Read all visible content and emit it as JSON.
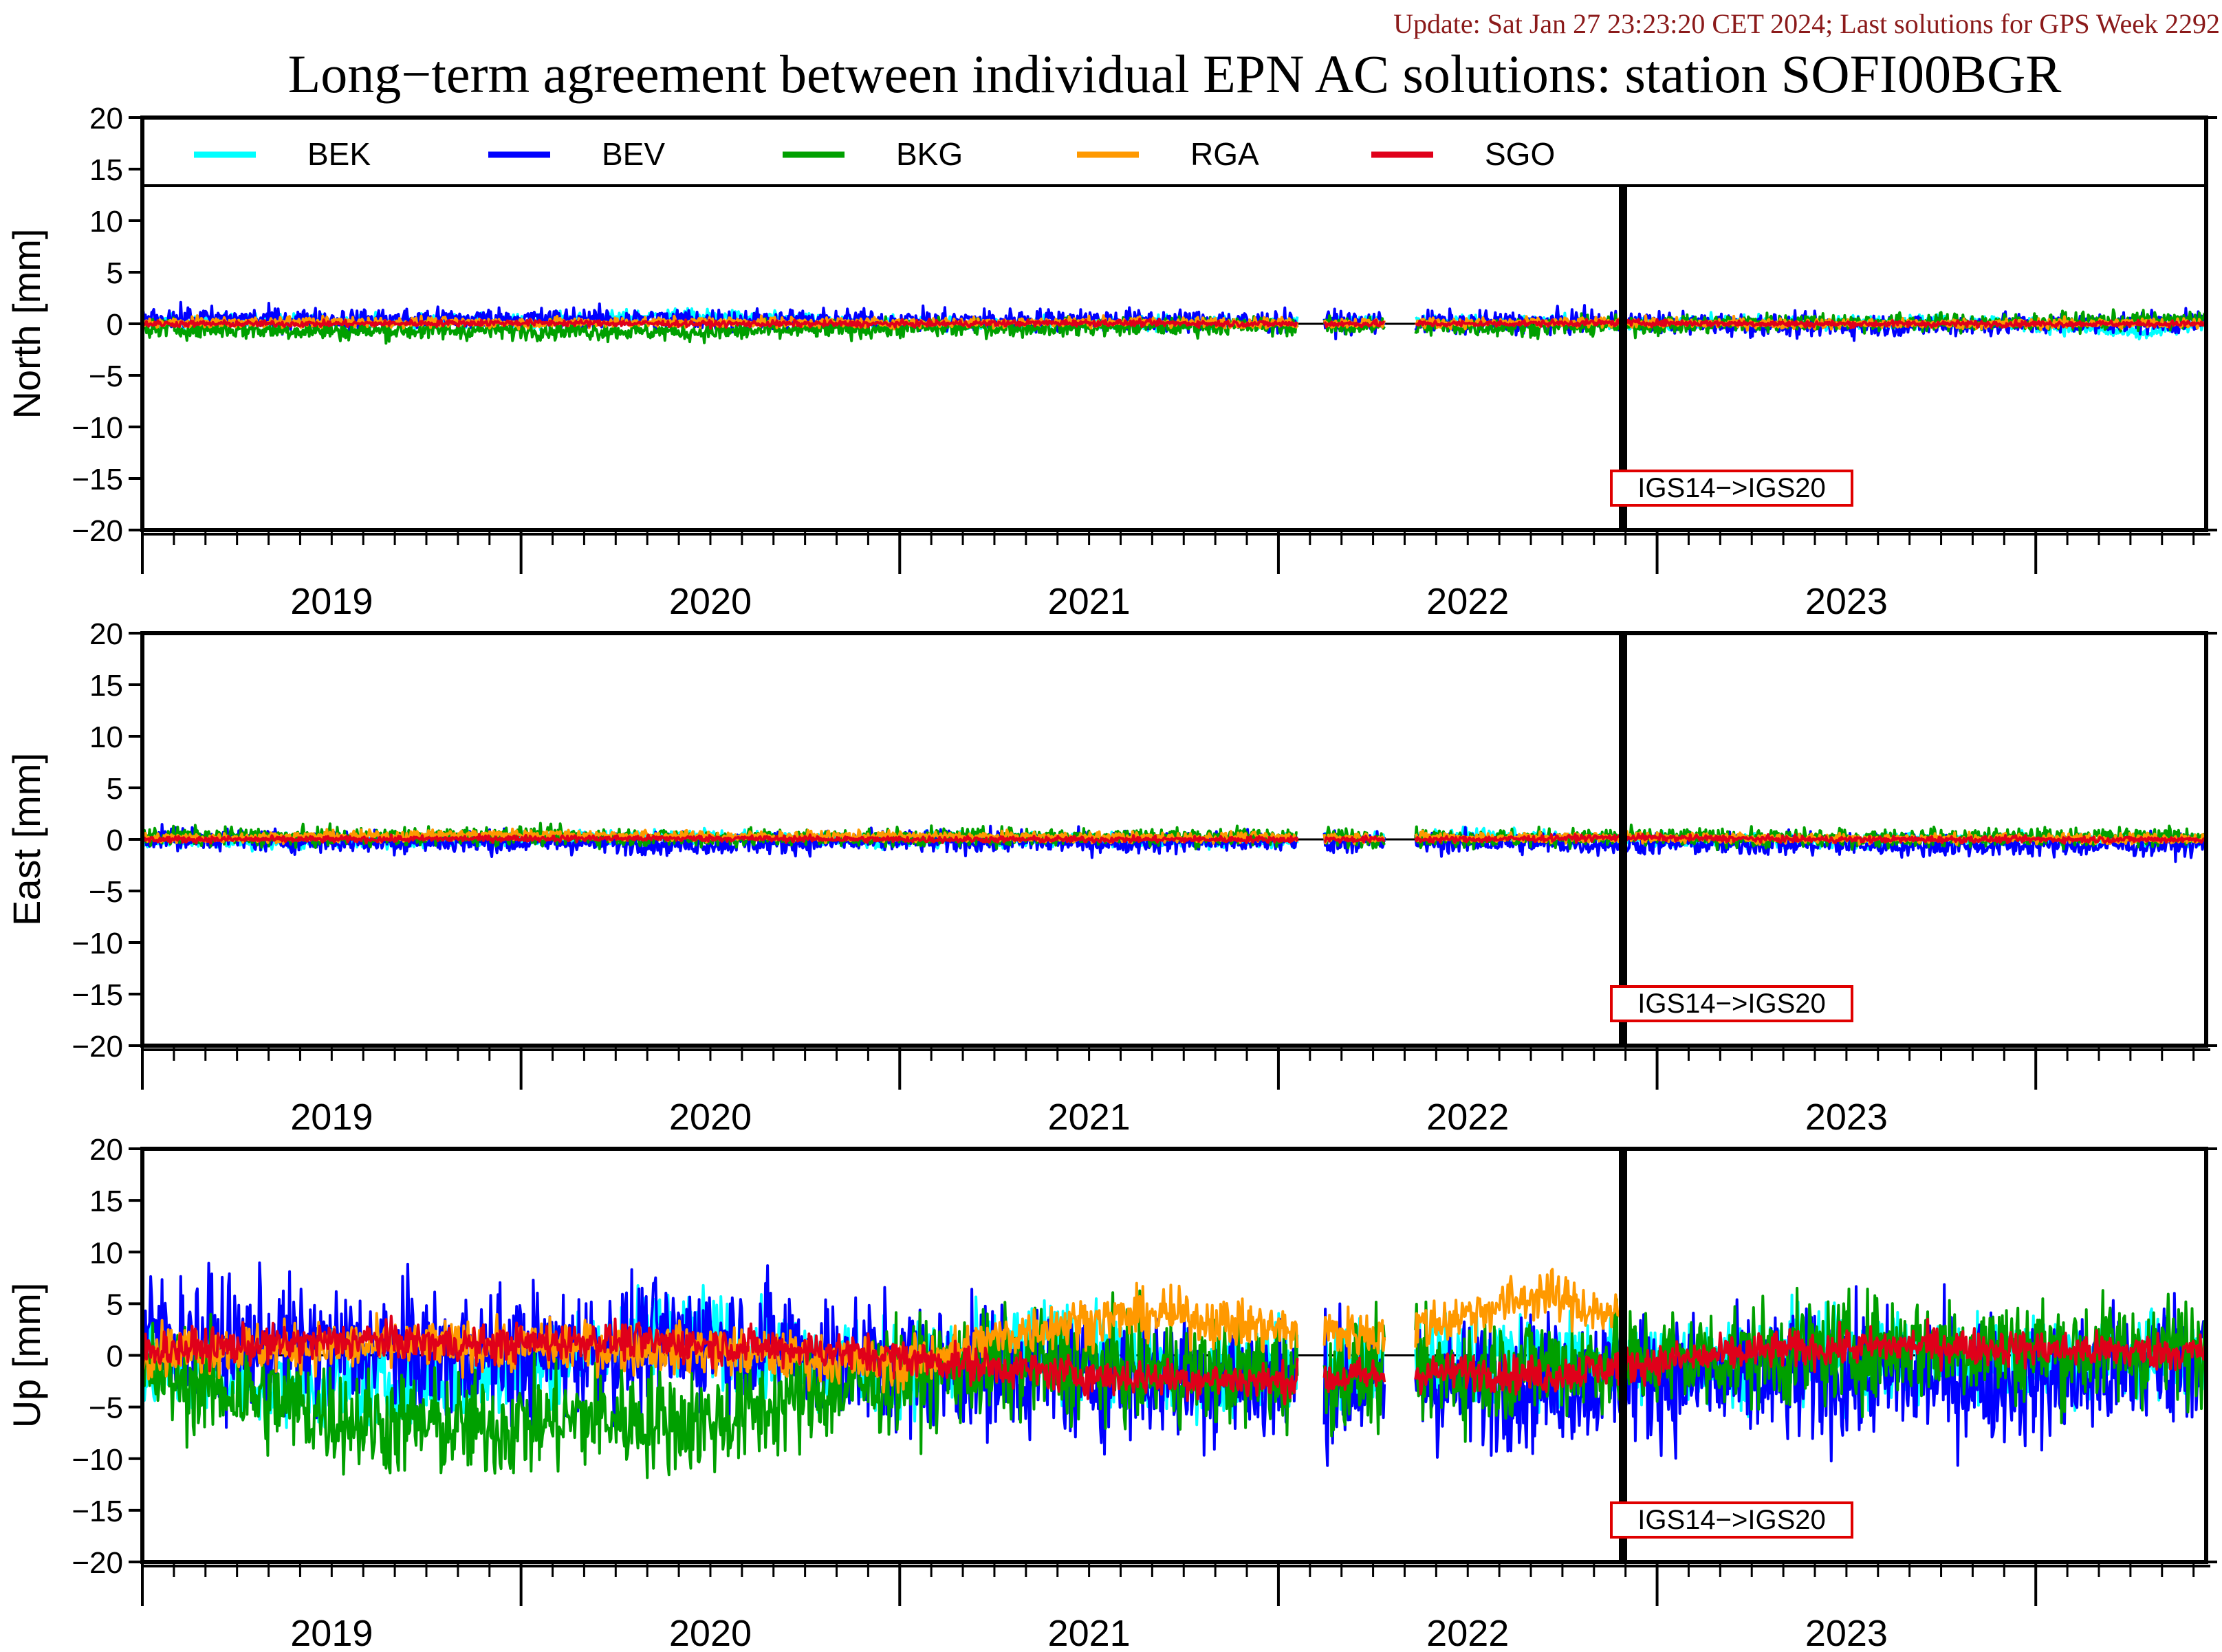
{
  "header": {
    "update_text": "Update: Sat Jan 27 23:23:20 CET 2024; Last solutions for GPS Week 2292",
    "title": "Long−term agreement between individual EPN AC solutions: station SOFI00BGR"
  },
  "colors": {
    "update_text": "#8b1a1a",
    "BEK": "#00ffff",
    "BEV": "#0000ff",
    "BKG": "#00a000",
    "RGA": "#ff9900",
    "SGO": "#e0001a",
    "annotation_border": "#e00000"
  },
  "chart_data": {
    "type": "line",
    "x_unit": "decimal year",
    "xlim": [
      2018.5,
      2023.95
    ],
    "year_labels": [
      "2019",
      "2020",
      "2021",
      "2022",
      "2023"
    ],
    "reference_frame_change": {
      "x": 2022.41,
      "label": "IGS14−>IGS20"
    },
    "legend": {
      "placement": "top",
      "entries": [
        "BEK",
        "BEV",
        "BKG",
        "RGA",
        "SGO"
      ]
    },
    "panels": [
      {
        "name": "north",
        "ylabel": "North [mm]",
        "ylim": [
          -20,
          20
        ],
        "yticks": [
          "20",
          "15",
          "10",
          "5",
          "0",
          "−5",
          "−10",
          "−15",
          "−20"
        ],
        "has_legend": true,
        "series": [
          {
            "name": "BEK",
            "x": [
              2018.5,
              2019.0,
              2019.5,
              2019.9,
              2020.5,
              2021.0,
              2021.5,
              2022.0,
              2022.41,
              2022.9,
              2023.4,
              2023.78,
              2023.95
            ],
            "y": [
              0.2,
              0.3,
              0.2,
              0.8,
              0.0,
              0.1,
              0.2,
              0.2,
              0.1,
              0.1,
              0.2,
              -1.0,
              0.1
            ]
          },
          {
            "name": "BEV",
            "x": [
              2018.5,
              2019.0,
              2019.5,
              2020.0,
              2020.5,
              2021.0,
              2021.5,
              2022.0,
              2022.41,
              2022.9,
              2023.4,
              2023.8,
              2023.95
            ],
            "y": [
              0.6,
              0.4,
              0.5,
              0.4,
              0.3,
              0.4,
              0.2,
              0.1,
              0.2,
              -0.2,
              -0.1,
              0.1,
              0.2
            ]
          },
          {
            "name": "BKG",
            "x": [
              2018.5,
              2019.0,
              2019.5,
              2020.0,
              2020.5,
              2021.0,
              2021.5,
              2022.0,
              2022.41,
              2022.9,
              2023.4,
              2023.8,
              2023.95
            ],
            "y": [
              -0.4,
              -0.7,
              -0.6,
              -0.8,
              -0.4,
              -0.3,
              -0.2,
              -0.3,
              -0.2,
              0.2,
              0.1,
              0.3,
              0.4
            ]
          },
          {
            "name": "RGA",
            "x": [
              2018.5,
              2019.0,
              2019.5,
              2020.0,
              2020.5,
              2021.0,
              2021.5,
              2022.0,
              2022.41,
              2022.9,
              2023.4,
              2023.95
            ],
            "y": [
              0.1,
              0.2,
              0.1,
              0.2,
              0.1,
              0.2,
              0.1,
              0.1,
              0.1,
              0.0,
              0.0,
              0.1
            ]
          },
          {
            "name": "SGO",
            "x": [
              2018.5,
              2019.0,
              2019.5,
              2020.0,
              2020.5,
              2021.0,
              2021.5,
              2022.0,
              2022.41,
              2022.9,
              2023.4,
              2023.95
            ],
            "y": [
              0.0,
              0.0,
              0.1,
              0.0,
              0.0,
              0.1,
              0.0,
              0.0,
              0.1,
              0.0,
              0.0,
              0.0
            ]
          }
        ]
      },
      {
        "name": "east",
        "ylabel": "East [mm]",
        "ylim": [
          -20,
          20
        ],
        "yticks": [
          "20",
          "15",
          "10",
          "5",
          "0",
          "−5",
          "−10",
          "−15",
          "−20"
        ],
        "has_legend": false,
        "series": [
          {
            "name": "BEK",
            "x": [
              2018.5,
              2019.0,
              2019.5,
              2020.0,
              2020.5,
              2021.0,
              2021.5,
              2022.0,
              2022.41,
              2022.9,
              2023.4,
              2023.95
            ],
            "y": [
              -0.3,
              -0.2,
              0.1,
              0.3,
              -0.1,
              0.0,
              -0.2,
              0.4,
              -0.1,
              -0.2,
              0.0,
              -0.1
            ]
          },
          {
            "name": "BEV",
            "x": [
              2018.5,
              2019.0,
              2019.5,
              2020.0,
              2020.5,
              2021.0,
              2021.5,
              2022.0,
              2022.41,
              2022.9,
              2023.4,
              2023.95
            ],
            "y": [
              0.2,
              -0.2,
              -0.3,
              -0.4,
              -0.2,
              -0.3,
              -0.2,
              -0.3,
              -0.4,
              -0.5,
              -0.6,
              -0.5
            ]
          },
          {
            "name": "BKG",
            "x": [
              2018.5,
              2019.0,
              2019.5,
              2020.0,
              2020.5,
              2021.0,
              2021.5,
              2022.0,
              2022.41,
              2022.9,
              2023.4,
              2023.95
            ],
            "y": [
              0.3,
              0.2,
              0.4,
              0.1,
              0.2,
              0.3,
              0.3,
              0.1,
              0.2,
              0.1,
              0.2,
              0.3
            ]
          },
          {
            "name": "RGA",
            "x": [
              2018.5,
              2019.0,
              2019.5,
              2020.0,
              2020.5,
              2021.0,
              2021.5,
              2022.0,
              2022.41,
              2022.9,
              2023.4,
              2023.95
            ],
            "y": [
              0.1,
              0.3,
              0.5,
              0.3,
              0.3,
              0.2,
              0.2,
              0.2,
              0.2,
              0.1,
              0.1,
              0.1
            ]
          },
          {
            "name": "SGO",
            "x": [
              2018.5,
              2019.0,
              2019.5,
              2020.0,
              2020.5,
              2021.0,
              2021.5,
              2022.0,
              2022.41,
              2022.9,
              2023.4,
              2023.95
            ],
            "y": [
              0.0,
              0.0,
              0.1,
              0.1,
              0.0,
              0.0,
              0.0,
              0.0,
              0.2,
              0.0,
              0.0,
              0.0
            ]
          }
        ]
      },
      {
        "name": "up",
        "ylabel": "Up [mm]",
        "ylim": [
          -20,
          20
        ],
        "yticks": [
          "20",
          "15",
          "10",
          "5",
          "0",
          "−5",
          "−10",
          "−15",
          "−20"
        ],
        "has_legend": false,
        "series": [
          {
            "name": "BEK",
            "x": [
              2018.5,
              2018.8,
              2019.1,
              2019.4,
              2019.7,
              2019.9,
              2020.2,
              2020.5,
              2020.9,
              2021.2,
              2021.5,
              2022.0,
              2022.41,
              2022.8,
              2023.2,
              2023.6,
              2023.95
            ],
            "y": [
              -1.0,
              -2.5,
              -3.0,
              -2.0,
              0.5,
              3.0,
              0.0,
              -1.5,
              1.0,
              -1.5,
              -1.0,
              -0.5,
              -0.8,
              0.0,
              -0.5,
              0.0,
              -0.5
            ]
          },
          {
            "name": "BEV",
            "x": [
              2018.5,
              2018.8,
              2019.1,
              2019.4,
              2019.7,
              2020.0,
              2020.3,
              2020.6,
              2020.9,
              2021.2,
              2021.5,
              2022.0,
              2022.41,
              2022.8,
              2023.2,
              2023.6,
              2023.95
            ],
            "y": [
              2.0,
              1.0,
              0.5,
              0.0,
              0.5,
              1.5,
              0.0,
              -1.0,
              -1.5,
              -2.0,
              -2.5,
              -3.0,
              -2.0,
              -2.5,
              -2.0,
              -2.5,
              0.5
            ]
          },
          {
            "name": "BKG",
            "x": [
              2018.5,
              2018.8,
              2019.1,
              2019.4,
              2019.7,
              2020.0,
              2020.3,
              2020.6,
              2020.9,
              2021.2,
              2021.5,
              2022.0,
              2022.41,
              2022.8,
              2023.2,
              2023.6,
              2023.95
            ],
            "y": [
              -1.5,
              -4.0,
              -6.5,
              -7.0,
              -6.0,
              -6.5,
              -3.5,
              -1.5,
              -1.0,
              -1.5,
              -2.0,
              -1.5,
              -0.5,
              0.0,
              1.0,
              0.5,
              0.5
            ]
          },
          {
            "name": "RGA",
            "x": [
              2018.5,
              2019.0,
              2019.5,
              2020.0,
              2020.5,
              2020.9,
              2021.2,
              2021.5,
              2021.8,
              2022.0,
              2022.2,
              2022.41
            ],
            "y": [
              0.5,
              0.8,
              1.0,
              0.5,
              -1.0,
              3.0,
              4.0,
              2.5,
              2.0,
              4.0,
              6.0,
              3.5
            ]
          },
          {
            "name": "SGO",
            "x": [
              2018.5,
              2018.8,
              2019.1,
              2019.4,
              2019.7,
              2020.0,
              2020.3,
              2021.0,
              2021.5,
              2022.0,
              2022.2,
              2022.41,
              2022.8,
              2023.2,
              2023.6,
              2023.95
            ],
            "y": [
              0.5,
              1.0,
              1.5,
              1.0,
              1.5,
              1.0,
              0.5,
              -2.0,
              -2.5,
              -1.5,
              -2.0,
              -1.0,
              0.5,
              1.0,
              0.5,
              0.3
            ]
          }
        ]
      }
    ]
  }
}
